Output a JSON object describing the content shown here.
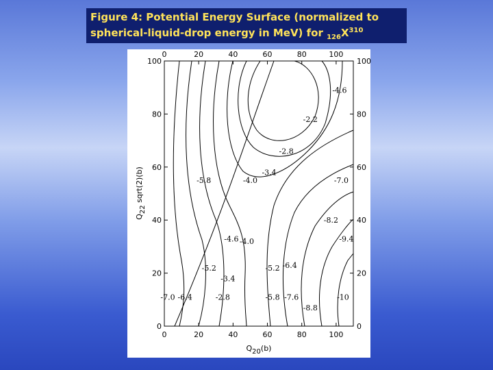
{
  "chart_data": {
    "type": "contour",
    "title": {
      "line1": "Figure 4: Potential Energy Surface (normalized to",
      "line2": "spherical-liquid-drop energy in MeV) for ",
      "sub": "126",
      "symbol": "X",
      "sup": "310"
    },
    "x_label": {
      "main": "Q",
      "sub": "20",
      "unit": "(b)"
    },
    "y_label": {
      "main": "Q",
      "sub": "22",
      "unit": " sqrt(2)(b)"
    },
    "xlim": [
      0,
      110
    ],
    "ylim": [
      0,
      100
    ],
    "xticks": [
      0,
      20,
      40,
      60,
      80,
      100
    ],
    "yticks": [
      0,
      20,
      40,
      60,
      80,
      100
    ],
    "x": [
      102,
      85,
      71,
      61,
      50,
      23,
      103,
      97,
      106,
      39,
      48,
      26,
      63,
      73,
      37,
      2,
      12,
      34,
      63,
      74,
      104,
      85
    ],
    "y": [
      89,
      78,
      66,
      58,
      55,
      55,
      55,
      40,
      33,
      33,
      32,
      22,
      22,
      23,
      18,
      11,
      11,
      11,
      11,
      11,
      11,
      7
    ],
    "values": [
      -4.6,
      -2.2,
      -2.8,
      -3.4,
      -4.0,
      -5.8,
      -7.0,
      -8.2,
      -9.4,
      -4.6,
      -4.0,
      -5.2,
      -5.2,
      -6.4,
      -3.4,
      -7.0,
      -6.4,
      -2.8,
      -5.8,
      -7.6,
      -10,
      -8.8
    ],
    "value_labels": [
      "-4.6",
      "-2.2",
      "-2.8",
      "-3.4",
      "-4.0",
      "-5.8",
      "-7.0",
      "-8.2",
      "-9.4",
      "-4.6",
      "-4.0",
      "-5.2",
      "-5.2",
      "-6.4",
      "-3.4",
      "-7.0",
      "-6.4",
      "-2.8",
      "-5.8",
      "-7.6",
      "-10",
      "-8.8"
    ]
  }
}
